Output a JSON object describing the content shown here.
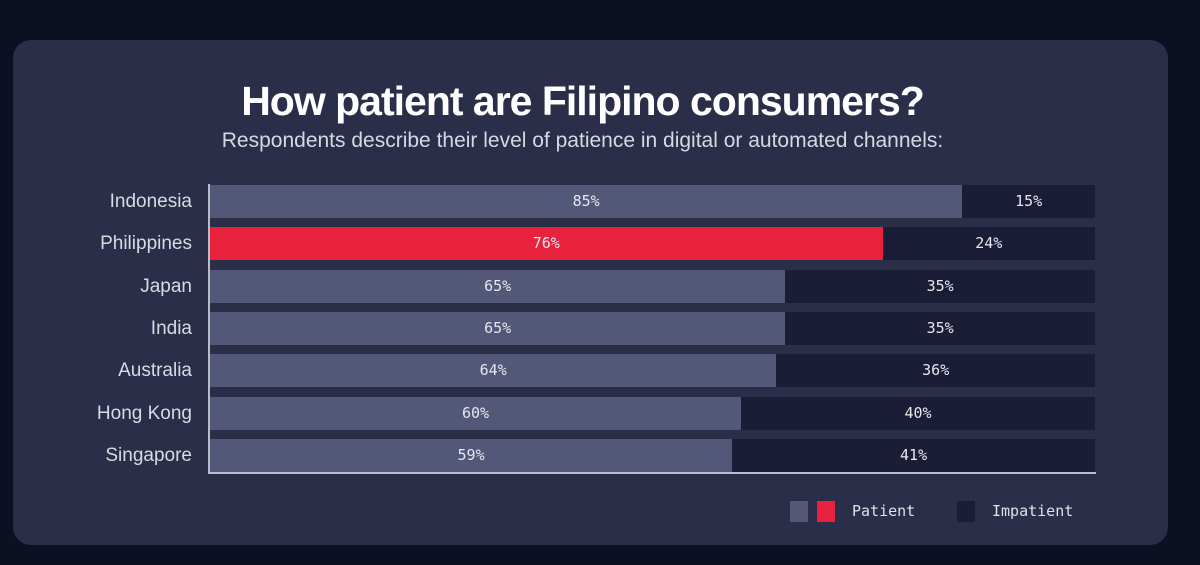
{
  "colors": {
    "patient": "#545878",
    "patient_highlight": "#e8223c",
    "impatient": "#1b1d36"
  },
  "chart_data": {
    "type": "bar",
    "orientation": "horizontal",
    "stacked": true,
    "title": "How patient are Filipino consumers?",
    "subtitle": "Respondents describe their level of patience in digital or automated channels:",
    "categories": [
      "Indonesia",
      "Philippines",
      "Japan",
      "India",
      "Australia",
      "Hong Kong",
      "Singapore"
    ],
    "series": [
      {
        "name": "Patient",
        "values": [
          85,
          76,
          65,
          65,
          64,
          60,
          59
        ],
        "labels": [
          "85%",
          "76%",
          "65%",
          "65%",
          "64%",
          "60%",
          "59%"
        ]
      },
      {
        "name": "Impatient",
        "values": [
          15,
          24,
          35,
          35,
          36,
          40,
          41
        ],
        "labels": [
          "15%",
          "24%",
          "35%",
          "35%",
          "36%",
          "40%",
          "41%"
        ]
      }
    ],
    "highlight_category": "Philippines",
    "xlim": [
      0,
      100
    ],
    "grid": false,
    "legend_position": "bottom-right",
    "legend": [
      "Patient",
      "Impatient"
    ]
  }
}
